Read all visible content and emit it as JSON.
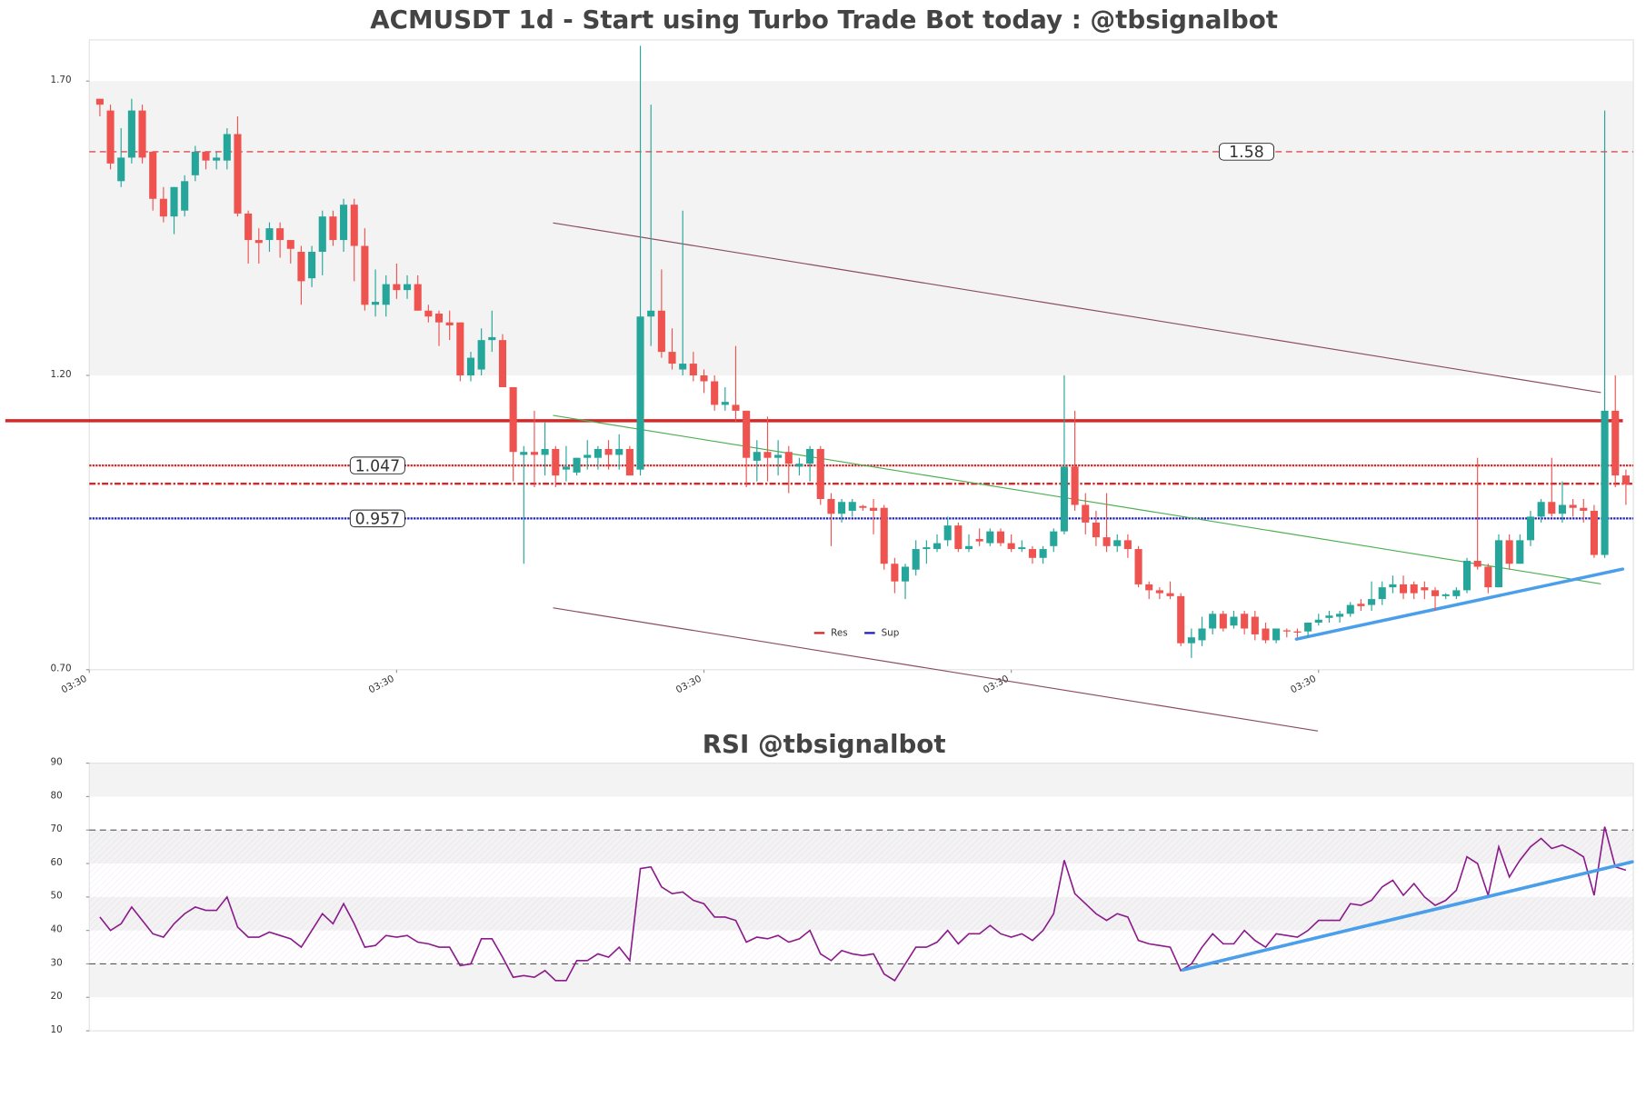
{
  "chart_data": [
    {
      "type": "candlestick",
      "title": "ACMUSDT 1d - Start using Turbo Trade Bot today : @tbsignalbot",
      "up_color": "#26a69a",
      "down_color": "#ef5350",
      "open": [
        1.67,
        1.65,
        1.53,
        1.57,
        1.65,
        1.58,
        1.5,
        1.47,
        1.48,
        1.54,
        1.58,
        1.565,
        1.565,
        1.61,
        1.475,
        1.43,
        1.43,
        1.45,
        1.43,
        1.41,
        1.365,
        1.41,
        1.47,
        1.43,
        1.49,
        1.42,
        1.32,
        1.32,
        1.355,
        1.345,
        1.355,
        1.31,
        1.305,
        1.29,
        1.29,
        1.2,
        1.21,
        1.26,
        1.26,
        1.18,
        1.065,
        1.07,
        1.065,
        1.075,
        1.04,
        1.035,
        1.06,
        1.06,
        1.075,
        1.065,
        1.075,
        1.04,
        1.3,
        1.31,
        1.24,
        1.21,
        1.22,
        1.2,
        1.19,
        1.15,
        1.15,
        1.14,
        1.055,
        1.07,
        1.06,
        1.07,
        1.045,
        1.05,
        1.075,
        0.99,
        0.965,
        0.97,
        0.978,
        0.975,
        0.975,
        0.88,
        0.85,
        0.87,
        0.905,
        0.905,
        0.92,
        0.945,
        0.905,
        0.922,
        0.915,
        0.935,
        0.915,
        0.905,
        0.905,
        0.89,
        0.91,
        0.935,
        1.045,
        0.98,
        0.95,
        0.925,
        0.91,
        0.92,
        0.905,
        0.845,
        0.835,
        0.83,
        0.825,
        0.745,
        0.75,
        0.77,
        0.795,
        0.775,
        0.795,
        0.79,
        0.77,
        0.75,
        0.767,
        0.765,
        0.765,
        0.78,
        0.788,
        0.79,
        0.795,
        0.812,
        0.81,
        0.82,
        0.84,
        0.845,
        0.845,
        0.84,
        0.835,
        0.825,
        0.825,
        0.835,
        0.885,
        0.875,
        0.84,
        0.92,
        0.88,
        0.92,
        0.96,
        0.985,
        0.965,
        0.98,
        0.975,
        0.97,
        0.895,
        1.14,
        1.03
      ],
      "high": [
        1.67,
        1.66,
        1.62,
        1.67,
        1.66,
        1.58,
        1.52,
        1.52,
        1.54,
        1.59,
        1.58,
        1.58,
        1.62,
        1.64,
        1.48,
        1.45,
        1.46,
        1.46,
        1.43,
        1.42,
        1.42,
        1.48,
        1.48,
        1.5,
        1.5,
        1.45,
        1.38,
        1.37,
        1.39,
        1.37,
        1.37,
        1.32,
        1.31,
        1.31,
        1.29,
        1.24,
        1.28,
        1.31,
        1.27,
        1.18,
        1.08,
        1.14,
        1.12,
        1.08,
        1.08,
        1.06,
        1.09,
        1.08,
        1.09,
        1.1,
        1.08,
        1.76,
        1.66,
        1.38,
        1.28,
        1.48,
        1.24,
        1.21,
        1.2,
        1.18,
        1.25,
        1.14,
        1.09,
        1.13,
        1.09,
        1.08,
        1.06,
        1.08,
        1.08,
        1.0,
        0.99,
        0.99,
        0.98,
        0.99,
        0.98,
        0.89,
        0.88,
        0.92,
        0.92,
        0.93,
        0.96,
        0.95,
        0.93,
        0.94,
        0.94,
        0.94,
        0.93,
        0.92,
        0.91,
        0.91,
        0.94,
        1.2,
        1.14,
        1.0,
        0.97,
        1.0,
        0.93,
        0.93,
        0.91,
        0.85,
        0.84,
        0.85,
        0.83,
        0.77,
        0.79,
        0.8,
        0.8,
        0.8,
        0.8,
        0.8,
        0.78,
        0.77,
        0.77,
        0.77,
        0.78,
        0.795,
        0.8,
        0.8,
        0.815,
        0.82,
        0.85,
        0.85,
        0.86,
        0.86,
        0.85,
        0.85,
        0.84,
        0.83,
        0.84,
        0.89,
        1.06,
        0.88,
        0.93,
        0.93,
        0.93,
        0.97,
        0.99,
        1.06,
        1.02,
        0.99,
        0.99,
        0.98,
        1.65,
        1.2,
        1.04
      ],
      "low": [
        1.64,
        1.55,
        1.52,
        1.56,
        1.56,
        1.48,
        1.46,
        1.44,
        1.47,
        1.53,
        1.55,
        1.55,
        1.55,
        1.47,
        1.39,
        1.39,
        1.41,
        1.4,
        1.39,
        1.32,
        1.35,
        1.37,
        1.42,
        1.41,
        1.36,
        1.31,
        1.3,
        1.3,
        1.33,
        1.33,
        1.31,
        1.29,
        1.25,
        1.26,
        1.19,
        1.19,
        1.2,
        1.24,
        1.18,
        1.02,
        0.88,
        1.01,
        1.03,
        1.01,
        1.02,
        1.03,
        1.04,
        1.04,
        1.04,
        1.04,
        1.03,
        1.03,
        1.25,
        1.23,
        1.21,
        1.2,
        1.19,
        1.17,
        1.14,
        1.14,
        1.12,
        1.01,
        1.02,
        1.02,
        1.03,
        1.0,
        1.03,
        1.02,
        0.98,
        0.91,
        0.95,
        0.96,
        0.97,
        0.93,
        0.87,
        0.83,
        0.82,
        0.86,
        0.88,
        0.9,
        0.91,
        0.9,
        0.9,
        0.91,
        0.91,
        0.91,
        0.9,
        0.9,
        0.88,
        0.88,
        0.9,
        0.93,
        0.97,
        0.93,
        0.91,
        0.9,
        0.9,
        0.89,
        0.84,
        0.82,
        0.82,
        0.82,
        0.74,
        0.72,
        0.74,
        0.76,
        0.765,
        0.77,
        0.76,
        0.75,
        0.745,
        0.745,
        0.755,
        0.755,
        0.755,
        0.775,
        0.78,
        0.78,
        0.79,
        0.8,
        0.8,
        0.81,
        0.83,
        0.82,
        0.82,
        0.82,
        0.8,
        0.82,
        0.82,
        0.83,
        0.87,
        0.83,
        0.84,
        0.87,
        0.88,
        0.91,
        0.95,
        0.96,
        0.95,
        0.96,
        0.95,
        0.89,
        0.89,
        1.01,
        0.98
      ],
      "close": [
        1.66,
        1.56,
        1.57,
        1.65,
        1.57,
        1.5,
        1.47,
        1.52,
        1.53,
        1.58,
        1.565,
        1.57,
        1.61,
        1.475,
        1.43,
        1.425,
        1.45,
        1.43,
        1.415,
        1.36,
        1.41,
        1.47,
        1.43,
        1.49,
        1.42,
        1.32,
        1.325,
        1.355,
        1.345,
        1.355,
        1.31,
        1.3,
        1.29,
        1.285,
        1.2,
        1.23,
        1.26,
        1.265,
        1.18,
        1.07,
        1.07,
        1.065,
        1.075,
        1.03,
        1.045,
        1.06,
        1.065,
        1.075,
        1.065,
        1.075,
        1.03,
        1.3,
        1.31,
        1.24,
        1.22,
        1.22,
        1.2,
        1.19,
        1.15,
        1.155,
        1.14,
        1.06,
        1.07,
        1.06,
        1.065,
        1.05,
        1.05,
        1.075,
        0.99,
        0.965,
        0.985,
        0.985,
        0.975,
        0.97,
        0.88,
        0.85,
        0.875,
        0.905,
        0.908,
        0.915,
        0.945,
        0.905,
        0.91,
        0.918,
        0.935,
        0.915,
        0.905,
        0.908,
        0.89,
        0.905,
        0.935,
        1.045,
        0.98,
        0.95,
        0.925,
        0.91,
        0.92,
        0.905,
        0.845,
        0.835,
        0.83,
        0.825,
        0.745,
        0.755,
        0.77,
        0.795,
        0.77,
        0.79,
        0.77,
        0.76,
        0.75,
        0.77,
        0.765,
        0.763,
        0.78,
        0.785,
        0.792,
        0.795,
        0.81,
        0.808,
        0.82,
        0.84,
        0.845,
        0.83,
        0.83,
        0.835,
        0.825,
        0.828,
        0.835,
        0.885,
        0.875,
        0.84,
        0.92,
        0.88,
        0.92,
        0.96,
        0.985,
        0.965,
        0.98,
        0.975,
        0.97,
        0.895,
        1.14,
        1.03,
        1.015
      ],
      "ylim": [
        0.7,
        1.77
      ],
      "yticks": [
        {
          "value": 0.7,
          "label": "0.70"
        },
        {
          "value": 1.2,
          "label": "1.20"
        },
        {
          "value": 1.7,
          "label": "1.70"
        }
      ],
      "xlim": [
        -1,
        144.7
      ],
      "xticks": [
        {
          "value": -1,
          "label": "03:30"
        },
        {
          "value": 28,
          "label": "03:30"
        },
        {
          "value": 57,
          "label": "03:30"
        },
        {
          "value": 86,
          "label": "03:30"
        },
        {
          "value": 115,
          "label": "03:30"
        }
      ],
      "bands": [
        [
          1.2,
          1.7
        ]
      ],
      "hlines": [
        {
          "value": 1.123,
          "color": "#d62728",
          "style": "solid",
          "width": 3
        },
        {
          "value": 1.047,
          "color": "#d62728",
          "style": "dotted",
          "width": 2,
          "show_label": true,
          "label_index": 26
        },
        {
          "value": 1.016,
          "color": "#d62728",
          "style": "dashdot",
          "width": 2
        },
        {
          "value": 0.957,
          "color": "#1f1fbf",
          "style": "dotted",
          "width": 2,
          "show_label": true,
          "label_index": 26
        },
        {
          "value": 1.58,
          "color": "#d62728",
          "style": "dashed",
          "width": 1,
          "show_label": true,
          "label_index": 108
        }
      ],
      "trendlines": [
        {
          "x": [
            42.8,
            141.6
          ],
          "y": [
            1.459,
            1.171
          ],
          "color": "#8b4a62",
          "width": 1
        },
        {
          "x": [
            42.8,
            114.9
          ],
          "y": [
            0.805,
            0.596
          ],
          "color": "#8b4a62",
          "width": 1
        },
        {
          "x": [
            42.8,
            141.6
          ],
          "y": [
            1.132,
            0.846
          ],
          "color": "#4caf50",
          "width": 1
        },
        {
          "x": [
            112.9,
            143.7
          ],
          "y": [
            0.752,
            0.871
          ],
          "color": "#4a9eea",
          "width": 3
        }
      ],
      "legend": [
        {
          "name": "Res",
          "color": "#d62728"
        },
        {
          "name": "Sup",
          "color": "#1f1fbf"
        }
      ],
      "legend_loc": "lower center"
    },
    {
      "type": "line",
      "title": "RSI @tbsignalbot",
      "color": "#8b1a8b",
      "values": [
        44,
        40,
        42,
        47,
        43,
        39,
        38,
        42,
        45,
        47,
        46,
        46,
        50,
        41,
        38,
        38,
        39.5,
        38.5,
        37.5,
        35,
        40,
        45,
        42,
        48,
        42,
        35,
        35.5,
        38.5,
        38,
        38.5,
        36.5,
        36,
        35,
        35,
        29.5,
        30,
        37.5,
        37.5,
        32,
        26,
        26.5,
        26,
        28,
        25,
        25,
        31,
        31,
        33,
        32,
        35,
        31,
        58.5,
        59,
        53,
        51,
        51.5,
        49,
        48,
        44,
        44,
        43,
        36.5,
        38,
        37.5,
        38.5,
        36.5,
        37.5,
        40,
        33,
        31,
        34,
        33,
        32.5,
        33,
        27,
        25,
        30,
        35,
        35,
        36.5,
        40,
        36,
        39,
        39,
        41.5,
        39,
        38,
        39,
        37,
        40,
        45,
        61,
        51,
        48,
        45,
        43,
        45,
        44,
        37,
        36,
        35.5,
        35,
        28,
        30,
        35,
        39,
        36,
        36,
        40,
        37,
        35,
        39,
        38.5,
        38,
        40,
        43,
        43,
        43,
        48,
        47.5,
        49,
        53,
        55,
        50.5,
        54,
        50,
        47.5,
        49,
        52,
        62,
        60,
        50.5,
        65,
        56,
        61,
        65,
        67.5,
        64.5,
        65.5,
        64,
        62,
        50.5,
        71,
        59,
        58
      ],
      "ylim": [
        10,
        90
      ],
      "yticks": [
        10,
        20,
        30,
        40,
        50,
        60,
        70,
        80,
        90
      ],
      "xlim": [
        -1,
        144.7
      ],
      "bands": [
        [
          20,
          30
        ],
        [
          40,
          50
        ],
        [
          60,
          70
        ],
        [
          80,
          90
        ]
      ],
      "hatch": [
        30,
        70
      ],
      "hlines": [
        {
          "value": 70,
          "color": "#555",
          "style": "dashed",
          "width": 1
        },
        {
          "value": 30,
          "color": "#555",
          "style": "dashed",
          "width": 1
        }
      ],
      "trendlines": [
        {
          "x": [
            102.2,
            144.6
          ],
          "y": [
            28.2,
            60.5
          ],
          "color": "#4a9eea",
          "width": 3
        }
      ]
    }
  ]
}
